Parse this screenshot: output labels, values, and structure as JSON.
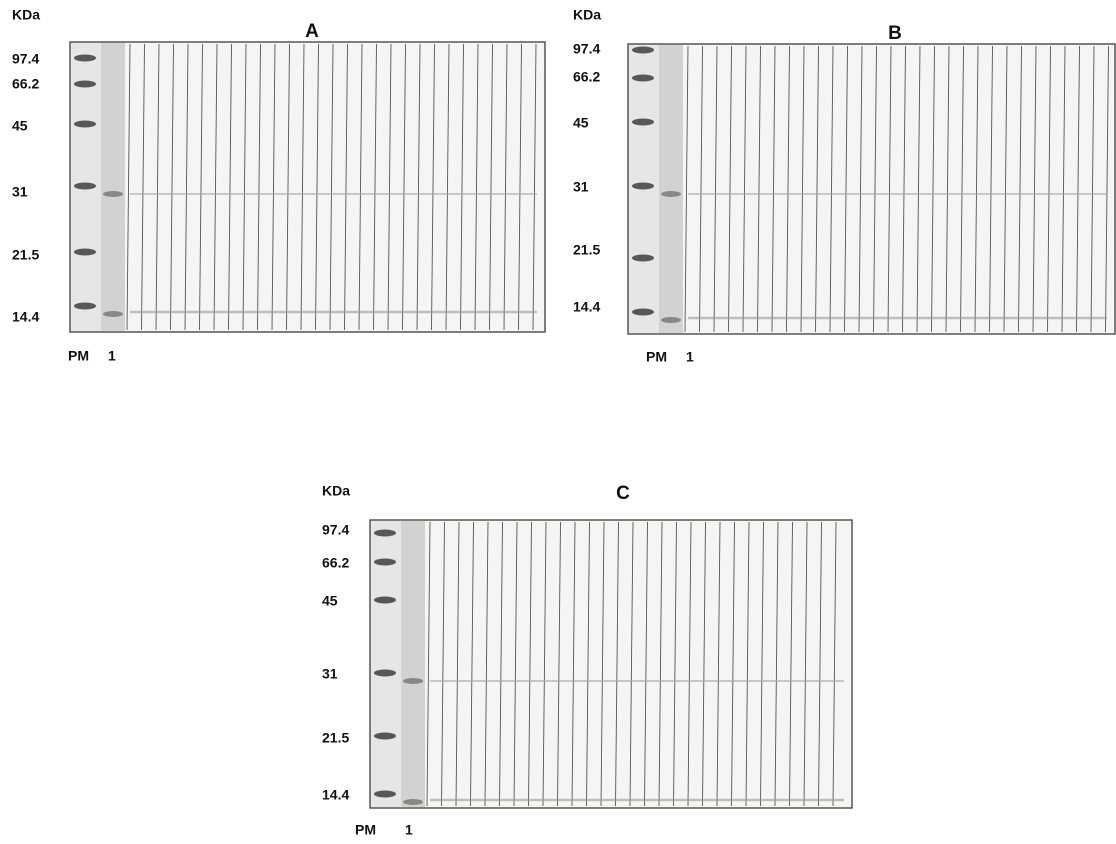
{
  "panels": [
    {
      "title": "A",
      "unit": "KDa",
      "markers": [
        "97.4",
        "66.2",
        "45",
        "31",
        "21.5",
        "14.4"
      ],
      "lanes": [
        "PM",
        "1"
      ]
    },
    {
      "title": "B",
      "unit": "KDa",
      "markers": [
        "97.4",
        "66.2",
        "45",
        "31",
        "21.5",
        "14.4"
      ],
      "lanes": [
        "PM",
        "1"
      ]
    },
    {
      "title": "C",
      "unit": "KDa",
      "markers": [
        "97.4",
        "66.2",
        "45",
        "31",
        "21.5",
        "14.4"
      ],
      "lanes": [
        "PM",
        "1"
      ]
    }
  ]
}
